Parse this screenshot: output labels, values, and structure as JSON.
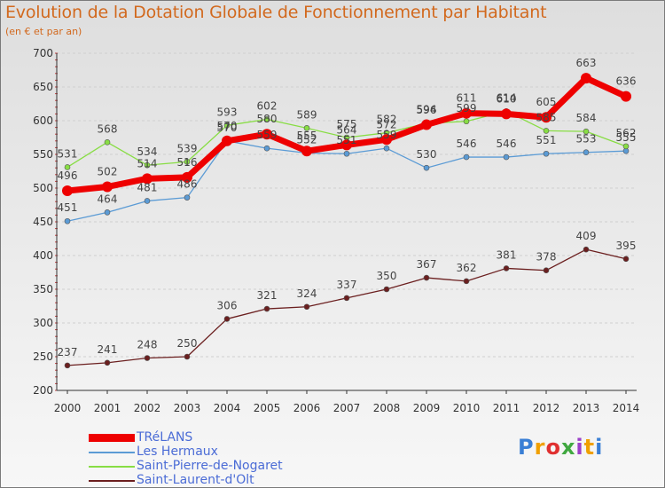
{
  "header": {
    "title": "Evolution de la Dotation Globale de Fonctionnement par Habitant",
    "subtitle": "(en € et par an)"
  },
  "chart_data": {
    "type": "line",
    "title": "Evolution de la Dotation Globale de Fonctionnement par Habitant",
    "ylabel": "(en € et par an)",
    "xlabel": "",
    "ylim": [
      200,
      700
    ],
    "yticks": [
      200,
      250,
      300,
      350,
      400,
      450,
      500,
      550,
      600,
      650,
      700
    ],
    "categories": [
      "2000",
      "2001",
      "2002",
      "2003",
      "2004",
      "2005",
      "2006",
      "2007",
      "2008",
      "2009",
      "2010",
      "2011",
      "2012",
      "2013",
      "2014"
    ],
    "grid": "horizontal",
    "legend_position": "bottom-left",
    "series": [
      {
        "key": "trelans",
        "name": "TRéLANS",
        "color": "#ee0000",
        "line_width": 7,
        "marker_r": 6,
        "values": [
          496,
          502,
          514,
          516,
          570,
          580,
          555,
          564,
          572,
          594,
          611,
          610,
          605,
          663,
          636
        ]
      },
      {
        "key": "hermaux",
        "name": "Les Hermaux",
        "color": "#5b9bd5",
        "line_width": 1.3,
        "marker_r": 3,
        "values": [
          451,
          464,
          481,
          486,
          570,
          559,
          552,
          551,
          559,
          530,
          546,
          546,
          551,
          553,
          555
        ]
      },
      {
        "key": "nogaret",
        "name": "Saint-Pierre-de-Nogaret",
        "color": "#88dd44",
        "line_width": 1.3,
        "marker_r": 3,
        "values": [
          531,
          568,
          534,
          539,
          593,
          602,
          589,
          575,
          582,
          596,
          599,
          614,
          585,
          584,
          562
        ]
      },
      {
        "key": "olt",
        "name": "Saint-Laurent-d'Olt",
        "color": "#6b1f1f",
        "line_width": 1.3,
        "marker_r": 3,
        "values": [
          237,
          241,
          248,
          250,
          306,
          321,
          324,
          337,
          350,
          367,
          362,
          381,
          378,
          409,
          395
        ]
      }
    ]
  },
  "branding": {
    "logo_text": "Proxiti",
    "letter_colors": [
      "#3a7fd5",
      "#f0a000",
      "#e03030",
      "#40a840",
      "#9b3fc8",
      "#f0a000",
      "#3a7fd5"
    ]
  }
}
